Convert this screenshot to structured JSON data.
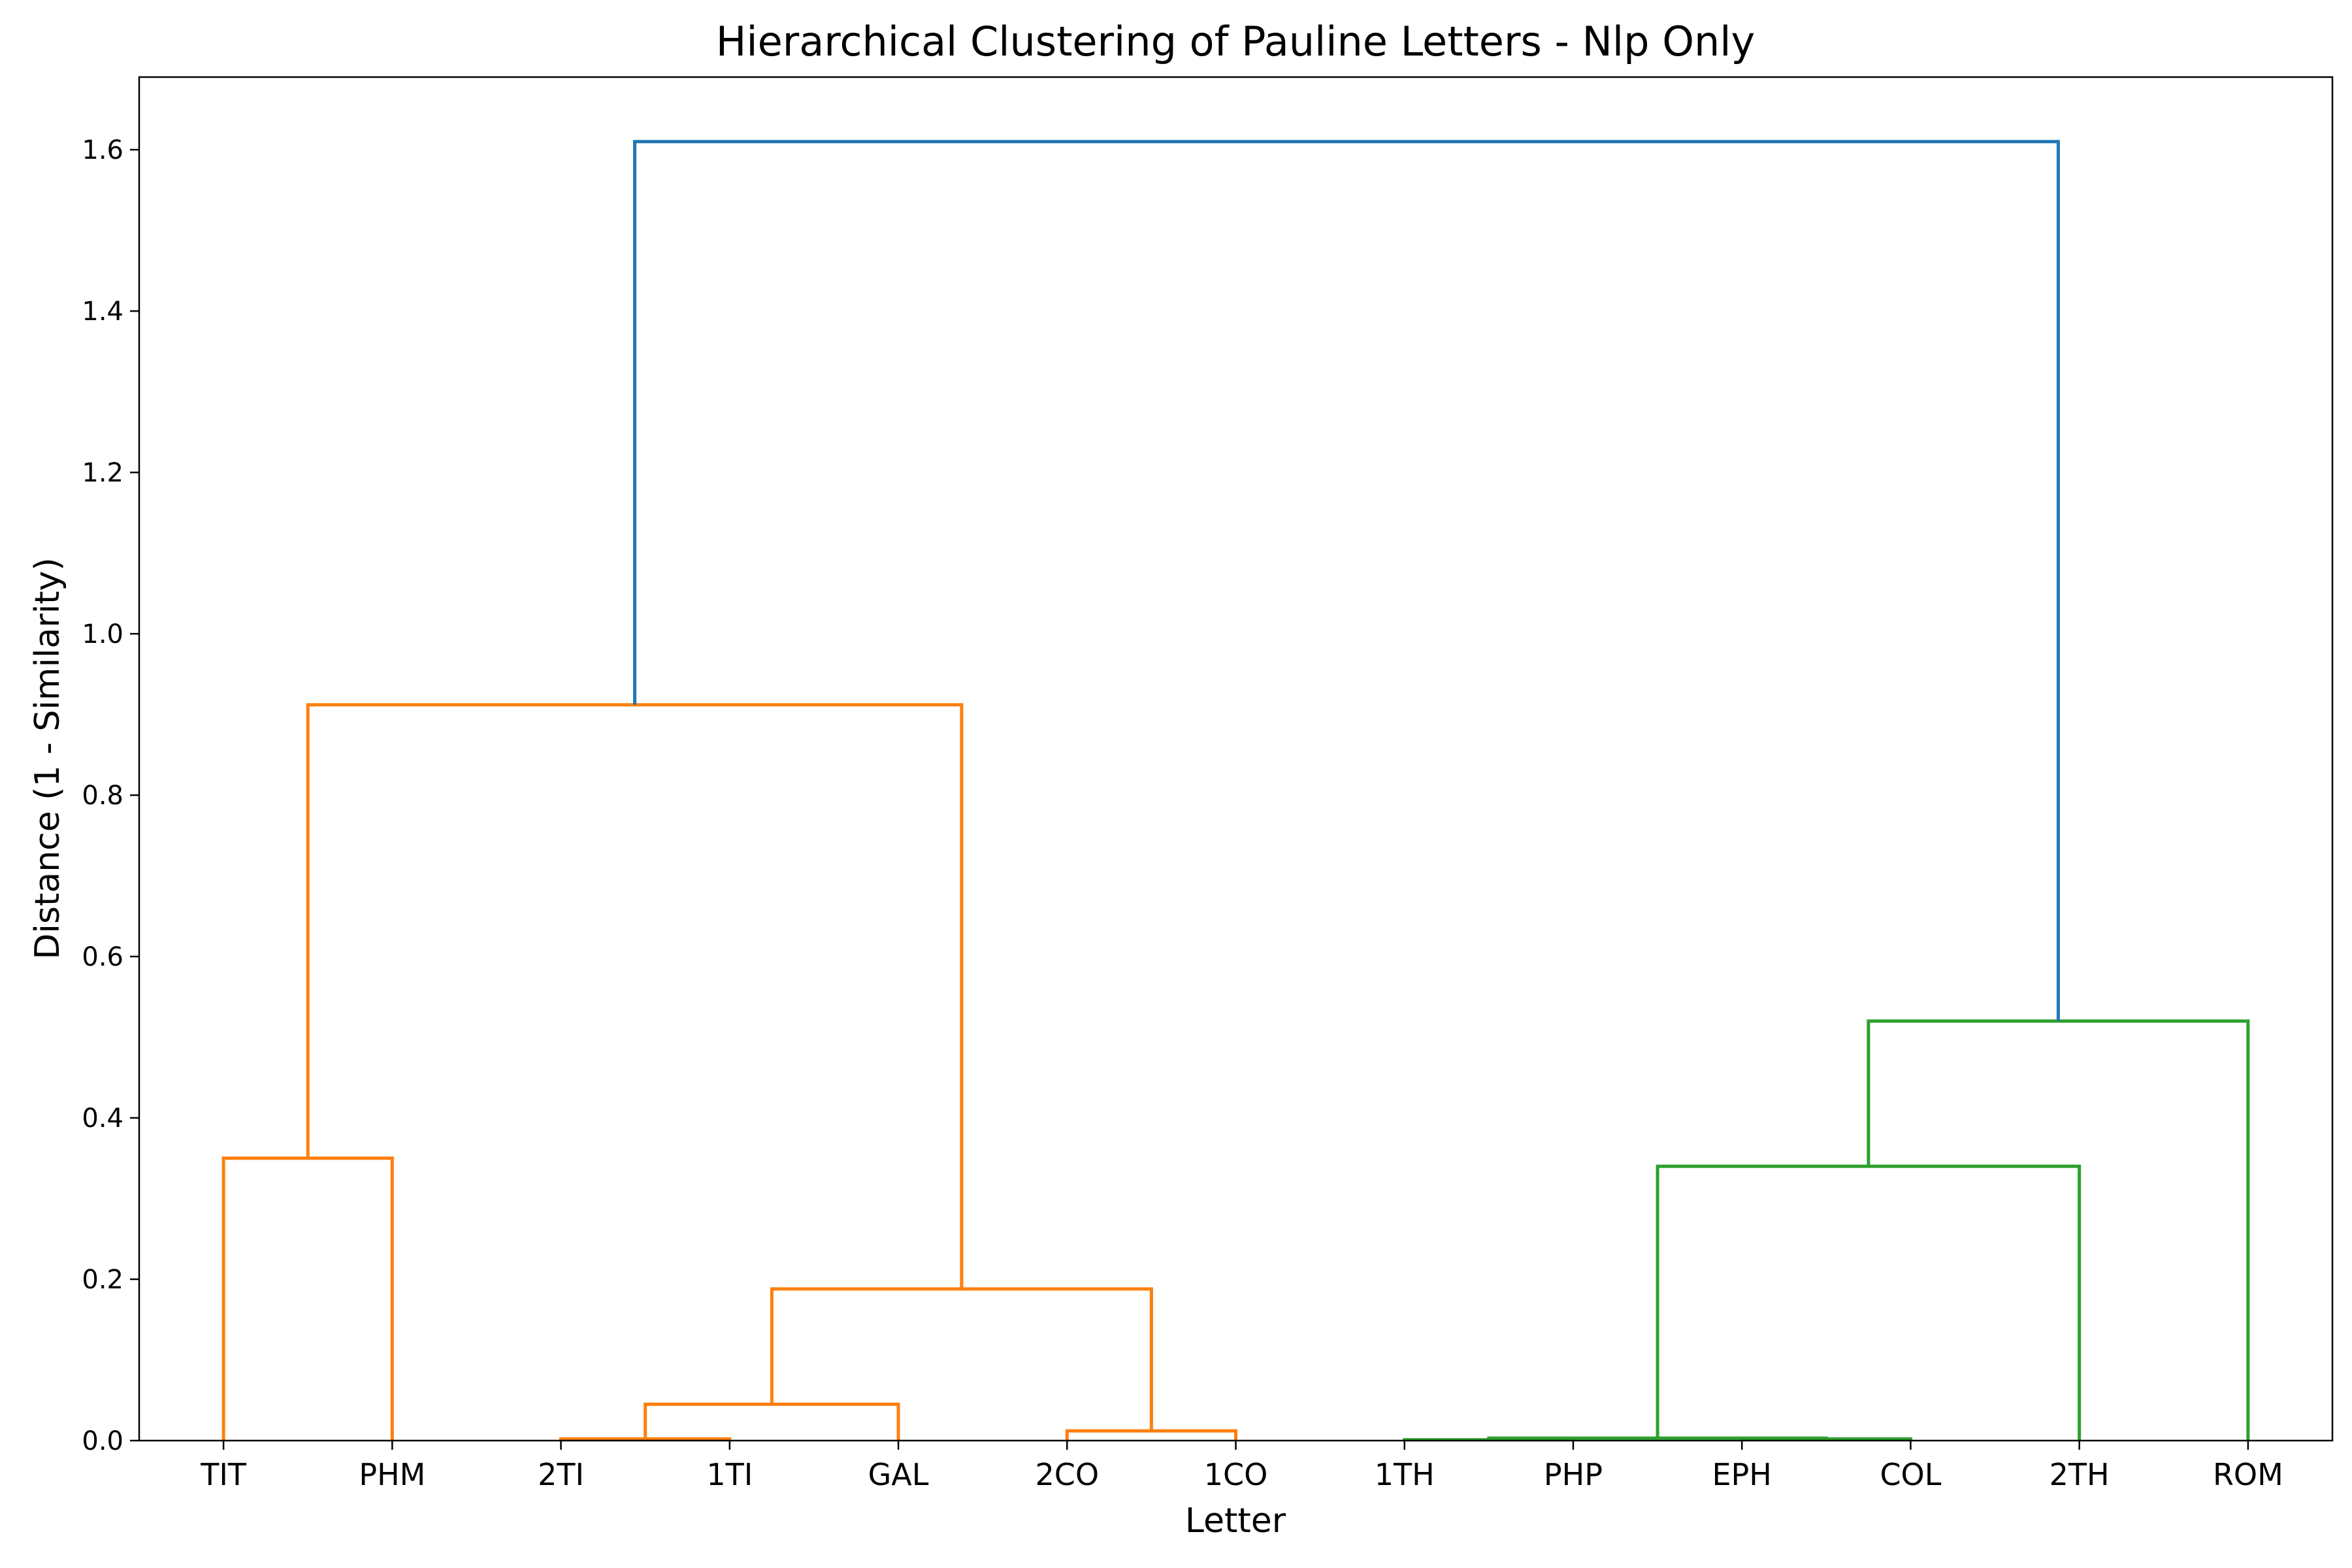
{
  "chart_data": {
    "type": "dendrogram",
    "title": "Hierarchical Clustering of Pauline Letters - Nlp Only",
    "xlabel": "Letter",
    "ylabel": "Distance (1 - Similarity)",
    "ylim": [
      0,
      1.69
    ],
    "yticks": [
      "0.0",
      "0.2",
      "0.4",
      "0.6",
      "0.8",
      "1.0",
      "1.2",
      "1.4",
      "1.6"
    ],
    "leaves": [
      "TIT",
      "PHM",
      "2TI",
      "1TI",
      "GAL",
      "2CO",
      "1CO",
      "1TH",
      "PHP",
      "EPH",
      "COL",
      "2TH",
      "ROM"
    ],
    "colors": {
      "c1": "#ff7f0e",
      "c2": "#2ca02c",
      "above": "#1f77b4"
    },
    "links": [
      {
        "left": "TIT",
        "right": "PHM",
        "height": 0.35,
        "color": "c1"
      },
      {
        "left": "2TI",
        "right": "1TI",
        "height": 0.002,
        "color": "c1"
      },
      {
        "left": "2TI+1TI",
        "right": "GAL",
        "height": 0.045,
        "color": "c1"
      },
      {
        "left": "2CO",
        "right": "1CO",
        "height": 0.012,
        "color": "c1"
      },
      {
        "left": "2TI+1TI+GAL",
        "right": "2CO+1CO",
        "height": 0.188,
        "color": "c1"
      },
      {
        "left": "TIT+PHM",
        "right": "2TI+1TI+GAL+2CO+1CO",
        "height": 0.912,
        "color": "c1"
      },
      {
        "left": "1TH",
        "right": "PHP",
        "height": 0.001,
        "color": "c2"
      },
      {
        "left": "EPH",
        "right": "COL",
        "height": 0.002,
        "color": "c2"
      },
      {
        "left": "1TH+PHP",
        "right": "EPH+COL",
        "height": 0.003,
        "color": "c2"
      },
      {
        "left": "1TH+PHP+EPH+COL",
        "right": "2TH",
        "height": 0.34,
        "color": "c2"
      },
      {
        "left": "1TH+PHP+EPH+COL+2TH",
        "right": "ROM",
        "height": 0.52,
        "color": "c2"
      },
      {
        "left": "TIT+PHM+2TI+1TI+GAL+2CO+1CO",
        "right": "1TH+PHP+EPH+COL+2TH+ROM",
        "height": 1.61,
        "color": "above"
      }
    ]
  }
}
